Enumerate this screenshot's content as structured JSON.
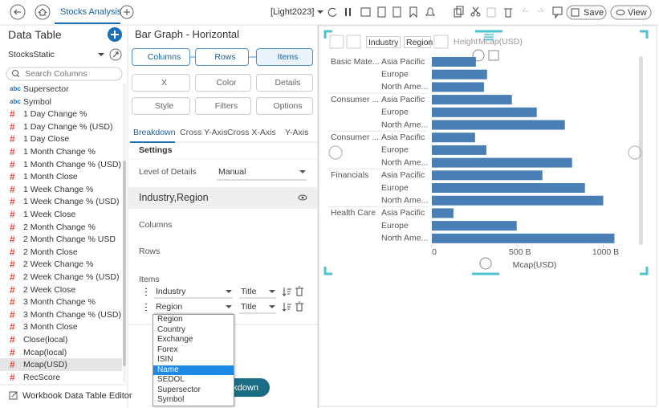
{
  "toolbar": {
    "tab": "Stocks Analysis",
    "theme": "[Light2023]",
    "save": "Save",
    "view": "View"
  },
  "data_panel": {
    "title": "Data Table",
    "source": "StocksStatic",
    "search": "Search Columns",
    "columns": [
      {
        "kind": "abc",
        "name": "Supersector"
      },
      {
        "kind": "abc",
        "name": "Symbol"
      },
      {
        "kind": "#",
        "name": "1 Day Change %"
      },
      {
        "kind": "#",
        "name": "1 Day Change % (USD)"
      },
      {
        "kind": "#",
        "name": "1 Day Close"
      },
      {
        "kind": "#",
        "name": "1 Month Change %"
      },
      {
        "kind": "#",
        "name": "1 Month Change % (USD)"
      },
      {
        "kind": "#",
        "name": "1 Month Close"
      },
      {
        "kind": "#",
        "name": "1 Week Change %"
      },
      {
        "kind": "#",
        "name": "1 Week Change % (USD)"
      },
      {
        "kind": "#",
        "name": "1 Week Close"
      },
      {
        "kind": "#",
        "name": "2 Month Change %"
      },
      {
        "kind": "#",
        "name": "2 Month Change % USD"
      },
      {
        "kind": "#",
        "name": "2 Month Close"
      },
      {
        "kind": "#",
        "name": "2 Week Change %"
      },
      {
        "kind": "#",
        "name": "2 Week Change % (USD)"
      },
      {
        "kind": "#",
        "name": "2 Week Close"
      },
      {
        "kind": "#",
        "name": "3 Month Change %"
      },
      {
        "kind": "#",
        "name": "3 Month Change % (USD)"
      },
      {
        "kind": "#",
        "name": "3 Month Close"
      },
      {
        "kind": "#",
        "name": "Close(local)"
      },
      {
        "kind": "#",
        "name": "Mcap(local)"
      },
      {
        "kind": "#",
        "name": "Mcap(USD)"
      },
      {
        "kind": "#",
        "name": "RecScore"
      }
    ],
    "footer": "Workbook Data Table Editor"
  },
  "settings_panel": {
    "title": "Bar Graph - Horizontal",
    "buttons": [
      "Columns",
      "Rows",
      "Items",
      "X",
      "Color",
      "Details",
      "Style",
      "Filters",
      "Options"
    ],
    "tabs": [
      "Breakdown",
      "Cross Y-Axis",
      "Cross X-Axis",
      "Y-Axis"
    ],
    "section": "Settings",
    "level_label": "Level of Details",
    "level_value": "Manual",
    "breakdown": "Industry,Region",
    "columns_label": "Columns",
    "rows_label": "Rows",
    "items_label": "Items",
    "items": [
      {
        "field": "Industry",
        "label": "Title"
      },
      {
        "field": "Region",
        "label": "Title"
      }
    ],
    "dropdown": [
      "Region",
      "Country",
      "Exchange",
      "Forex",
      "ISIN",
      "Name",
      "SEDOL",
      "Supersector",
      "Symbol"
    ],
    "button": "Breakdown"
  },
  "chart_toolbar": {
    "chips": [
      "Industry",
      "Region"
    ],
    "height_label": "Height",
    "height_value": "Mcap(USD)"
  },
  "chart_data": {
    "type": "bar",
    "orientation": "horizontal",
    "color": "#4a7fb5",
    "groups": [
      "Basic Mate...",
      null,
      null,
      "Consumer ...",
      null,
      null,
      "Consumer ...",
      null,
      null,
      "Financials",
      null,
      null,
      "Health Care",
      null,
      null
    ],
    "categories": [
      "Asia Pacific",
      "Europe",
      "North Ame...",
      "Asia Pacific",
      "Europe",
      "North Ame...",
      "Asia Pacific",
      "Europe",
      "North Ame...",
      "Asia Pacific",
      "Europe",
      "North Ame...",
      "Asia Pacific",
      "Europe",
      "North Ame..."
    ],
    "values": [
      257,
      322,
      304,
      467,
      612,
      776,
      252,
      318,
      818,
      645,
      893,
      1000,
      126,
      495,
      1065
    ],
    "x_label": "Mcap(USD)",
    "xlim": [
      0,
      1180
    ],
    "xticks": [
      0,
      {
        "value": 500,
        "label": "500 B"
      },
      {
        "value": 1000,
        "label": "1000 B"
      }
    ]
  }
}
